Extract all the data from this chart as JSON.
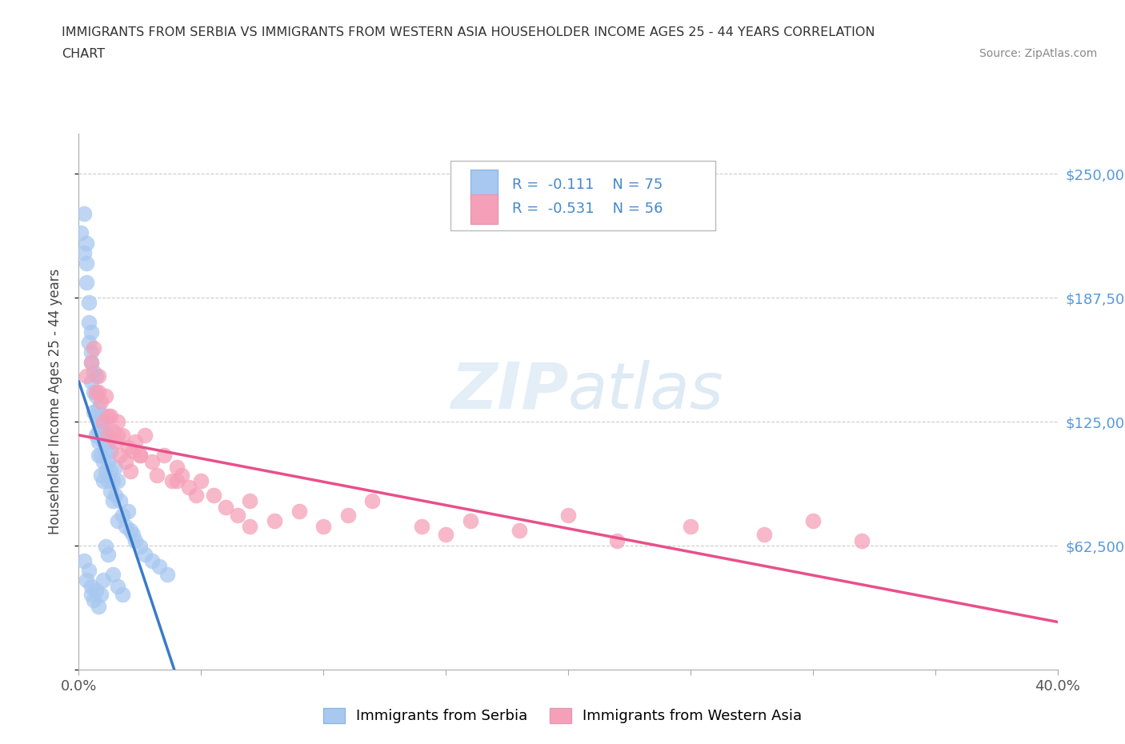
{
  "title_line1": "IMMIGRANTS FROM SERBIA VS IMMIGRANTS FROM WESTERN ASIA HOUSEHOLDER INCOME AGES 25 - 44 YEARS CORRELATION",
  "title_line2": "CHART",
  "source_text": "Source: ZipAtlas.com",
  "ylabel": "Householder Income Ages 25 - 44 years",
  "xlim": [
    0.0,
    0.4
  ],
  "ylim": [
    0,
    270000
  ],
  "yticks": [
    0,
    62500,
    125000,
    187500,
    250000
  ],
  "ytick_labels": [
    "",
    "$62,500",
    "$125,000",
    "$187,500",
    "$250,000"
  ],
  "xticks": [
    0.0,
    0.05,
    0.1,
    0.15,
    0.2,
    0.25,
    0.3,
    0.35,
    0.4
  ],
  "xtick_labels": [
    "0.0%",
    "",
    "",
    "",
    "",
    "",
    "",
    "",
    "40.0%"
  ],
  "watermark_text": "ZIPAtlas",
  "serbia_color": "#a8c8f0",
  "western_asia_color": "#f5a0b8",
  "serbia_line_color": "#3a7bc8",
  "western_asia_line_color": "#e8508a",
  "serbia_dash_color": "#90b8e0",
  "serbia_label": "Immigrants from Serbia",
  "western_asia_label": "Immigrants from Western Asia",
  "serbia_R": -0.111,
  "serbia_N": 75,
  "western_asia_R": -0.531,
  "western_asia_N": 56,
  "serbia_scatter_x": [
    0.001,
    0.002,
    0.002,
    0.003,
    0.003,
    0.003,
    0.004,
    0.004,
    0.004,
    0.005,
    0.005,
    0.005,
    0.005,
    0.006,
    0.006,
    0.006,
    0.007,
    0.007,
    0.007,
    0.007,
    0.008,
    0.008,
    0.008,
    0.008,
    0.008,
    0.009,
    0.009,
    0.009,
    0.009,
    0.01,
    0.01,
    0.01,
    0.01,
    0.011,
    0.011,
    0.011,
    0.012,
    0.012,
    0.012,
    0.013,
    0.013,
    0.013,
    0.014,
    0.014,
    0.015,
    0.015,
    0.016,
    0.016,
    0.017,
    0.018,
    0.019,
    0.02,
    0.021,
    0.022,
    0.023,
    0.025,
    0.027,
    0.03,
    0.033,
    0.036,
    0.002,
    0.003,
    0.004,
    0.005,
    0.005,
    0.006,
    0.007,
    0.008,
    0.009,
    0.01,
    0.011,
    0.012,
    0.014,
    0.016,
    0.018
  ],
  "serbia_scatter_y": [
    220000,
    230000,
    210000,
    195000,
    205000,
    215000,
    175000,
    185000,
    165000,
    155000,
    170000,
    160000,
    145000,
    150000,
    140000,
    130000,
    138000,
    128000,
    148000,
    118000,
    125000,
    115000,
    132000,
    108000,
    120000,
    118000,
    108000,
    125000,
    98000,
    115000,
    105000,
    95000,
    128000,
    110000,
    100000,
    120000,
    105000,
    95000,
    115000,
    100000,
    90000,
    110000,
    95000,
    85000,
    102000,
    88000,
    95000,
    75000,
    85000,
    78000,
    72000,
    80000,
    70000,
    68000,
    65000,
    62000,
    58000,
    55000,
    52000,
    48000,
    55000,
    45000,
    50000,
    42000,
    38000,
    35000,
    40000,
    32000,
    38000,
    45000,
    62000,
    58000,
    48000,
    42000,
    38000
  ],
  "western_asia_scatter_x": [
    0.003,
    0.005,
    0.006,
    0.007,
    0.008,
    0.009,
    0.01,
    0.011,
    0.012,
    0.013,
    0.014,
    0.015,
    0.016,
    0.017,
    0.018,
    0.019,
    0.02,
    0.021,
    0.022,
    0.023,
    0.025,
    0.027,
    0.03,
    0.032,
    0.035,
    0.038,
    0.04,
    0.042,
    0.045,
    0.048,
    0.05,
    0.055,
    0.06,
    0.065,
    0.07,
    0.08,
    0.09,
    0.1,
    0.11,
    0.12,
    0.14,
    0.15,
    0.16,
    0.18,
    0.2,
    0.22,
    0.25,
    0.28,
    0.3,
    0.32,
    0.008,
    0.012,
    0.016,
    0.025,
    0.04,
    0.07
  ],
  "western_asia_scatter_y": [
    148000,
    155000,
    162000,
    140000,
    148000,
    135000,
    125000,
    138000,
    118000,
    128000,
    120000,
    115000,
    125000,
    108000,
    118000,
    105000,
    112000,
    100000,
    110000,
    115000,
    108000,
    118000,
    105000,
    98000,
    108000,
    95000,
    102000,
    98000,
    92000,
    88000,
    95000,
    88000,
    82000,
    78000,
    85000,
    75000,
    80000,
    72000,
    78000,
    85000,
    72000,
    68000,
    75000,
    70000,
    78000,
    65000,
    72000,
    68000,
    75000,
    65000,
    140000,
    128000,
    118000,
    108000,
    95000,
    72000
  ]
}
